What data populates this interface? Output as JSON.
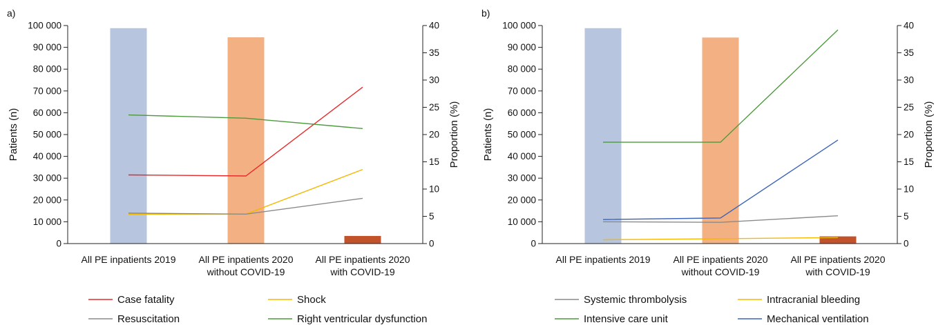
{
  "chart_data": [
    {
      "panel": "a)",
      "type": "bar+line",
      "categories": [
        [
          "All PE inpatients 2019"
        ],
        [
          "All PE inpatients 2020",
          "without COVID-19"
        ],
        [
          "All PE inpatients 2020",
          "with COVID-19"
        ]
      ],
      "ylabel": "Patients (n)",
      "y2label": "Proportion (%)",
      "ylim": [
        0,
        100000
      ],
      "y2lim": [
        0,
        40
      ],
      "yticks": [
        "0",
        "10 000",
        "20 000",
        "30 000",
        "40 000",
        "50 000",
        "60 000",
        "70 000",
        "80 000",
        "90 000",
        "100 000"
      ],
      "y2ticks": [
        "0",
        "5",
        "10",
        "15",
        "20",
        "25",
        "30",
        "35",
        "40"
      ],
      "bars": {
        "values": [
          98800,
          94600,
          3500
        ],
        "colors": [
          "#b7c5de",
          "#f2b083",
          "#c2522a"
        ]
      },
      "series": [
        {
          "name": "Case fatality",
          "color": "#e8292b",
          "values": [
            12.6,
            12.4,
            28.7
          ]
        },
        {
          "name": "Shock",
          "color": "#f5b800",
          "values": [
            5.4,
            5.4,
            13.6
          ]
        },
        {
          "name": "Resuscitation",
          "color": "#8a8a8a",
          "values": [
            5.6,
            5.4,
            8.3
          ]
        },
        {
          "name": "Right ventricular dysfunction",
          "color": "#4c9a3c",
          "values": [
            23.6,
            23.0,
            21.1
          ]
        }
      ],
      "legend_position": "bottom"
    },
    {
      "panel": "b)",
      "type": "bar+line",
      "categories": [
        [
          "All PE inpatients 2019"
        ],
        [
          "All PE inpatients 2020",
          "without COVID-19"
        ],
        [
          "All PE inpatients 2020",
          "with COVID-19"
        ]
      ],
      "ylabel": "Patients (n)",
      "y2label": "Proportion (%)",
      "ylim": [
        0,
        100000
      ],
      "y2lim": [
        0,
        40
      ],
      "yticks": [
        "0",
        "10 000",
        "20 000",
        "30 000",
        "40 000",
        "50 000",
        "60 000",
        "70 000",
        "80 000",
        "90 000",
        "100 000"
      ],
      "y2ticks": [
        "0",
        "5",
        "10",
        "15",
        "20",
        "25",
        "30",
        "35",
        "40"
      ],
      "bars": {
        "values": [
          98800,
          94500,
          3300
        ],
        "colors": [
          "#b7c5de",
          "#f2b083",
          "#c2522a"
        ]
      },
      "series": [
        {
          "name": "Systemic thrombolysis",
          "color": "#8a8a8a",
          "values": [
            4.0,
            3.9,
            5.1
          ]
        },
        {
          "name": "Intracranial bleeding",
          "color": "#f5b800",
          "values": [
            0.7,
            0.9,
            1.1
          ]
        },
        {
          "name": "Intensive care unit",
          "color": "#4c9a3c",
          "values": [
            18.6,
            18.6,
            39.2
          ]
        },
        {
          "name": "Mechanical ventilation",
          "color": "#3a63b8",
          "values": [
            4.4,
            4.7,
            19.0
          ]
        }
      ],
      "legend_position": "bottom"
    }
  ]
}
